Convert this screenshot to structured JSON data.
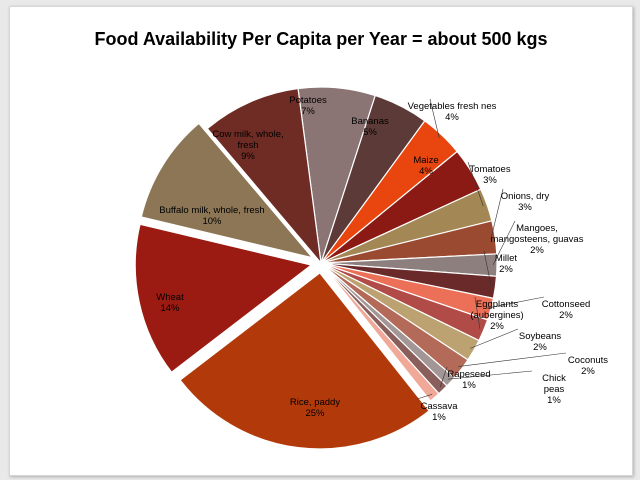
{
  "chart_data": {
    "type": "pie",
    "title": "Food Availability Per Capita per Year  =  about 500 kgs",
    "slices": [
      {
        "label": "Potatoes",
        "value_label": "7%",
        "value": 7,
        "color": "#8b7474",
        "exploded": false
      },
      {
        "label": "Bananas",
        "value_label": "5%",
        "value": 5,
        "color": "#5c3a37",
        "exploded": false
      },
      {
        "label": "Vegetables fresh nes",
        "value_label": "4%",
        "value": 4,
        "color": "#e8450f",
        "exploded": false
      },
      {
        "label": "Maize",
        "value_label": "4%",
        "value": 4,
        "color": "#8c1a14",
        "exploded": false
      },
      {
        "label": "Tomatoes",
        "value_label": "3%",
        "value": 3,
        "color": "#a38754",
        "exploded": false
      },
      {
        "label": "Onions, dry",
        "value_label": "3%",
        "value": 3,
        "color": "#9a4a30",
        "exploded": false
      },
      {
        "label": "Mangoes, mangosteens, guavas",
        "value_label": "2%",
        "value": 2,
        "color": "#8e7f7f",
        "exploded": false
      },
      {
        "label": "Millet",
        "value_label": "2%",
        "value": 2,
        "color": "#6a2a2a",
        "exploded": false
      },
      {
        "label": "Cottonseed",
        "value_label": "2%",
        "value": 2,
        "color": "#ec7058",
        "exploded": false
      },
      {
        "label": "Eggplants (aubergines)",
        "value_label": "2%",
        "value": 2,
        "color": "#b04b48",
        "exploded": false
      },
      {
        "label": "Soybeans",
        "value_label": "2%",
        "value": 2,
        "color": "#bca271",
        "exploded": false
      },
      {
        "label": "Coconuts",
        "value_label": "2%",
        "value": 2,
        "color": "#b36a58",
        "exploded": false
      },
      {
        "label": "Chick peas",
        "value_label": "1%",
        "value": 1,
        "color": "#a29696",
        "exploded": false
      },
      {
        "label": "Rapeseed",
        "value_label": "1%",
        "value": 1,
        "color": "#8a5e5a",
        "exploded": false
      },
      {
        "label": "Cassava",
        "value_label": "1%",
        "value": 1,
        "color": "#f0a898",
        "exploded": false
      },
      {
        "label": "Rice, paddy",
        "value_label": "25%",
        "value": 25,
        "color": "#b23a0a",
        "exploded": true
      },
      {
        "label": "Wheat",
        "value_label": "14%",
        "value": 14,
        "color": "#9b1b12",
        "exploded": true
      },
      {
        "label": "Buffalo milk, whole, fresh",
        "value_label": "10%",
        "value": 10,
        "color": "#8c7656",
        "exploded": true
      },
      {
        "label": "Cow milk, whole, fresh",
        "value_label": "9%",
        "value": 9,
        "color": "#6e2c25",
        "exploded": false
      }
    ]
  }
}
